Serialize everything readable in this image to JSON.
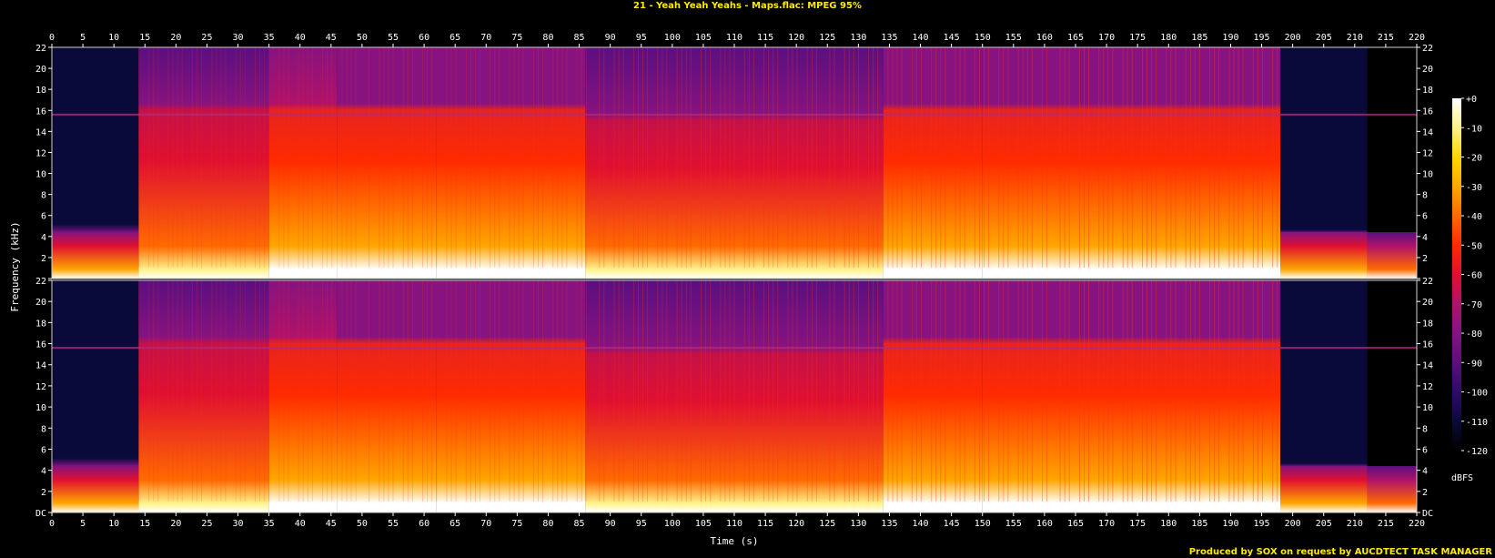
{
  "window": {
    "title": "21 - Yeah Yeah Yeahs - Maps.flac: MPEG 95%",
    "credit": "Produced by SOX on request by AUCDTECT TASK MANAGER"
  },
  "chart_data": {
    "type": "heatmap",
    "title": "21 - Yeah Yeah Yeahs - Maps.flac: MPEG 95%",
    "xlabel": "Time (s)",
    "ylabel": "Frequency (kHz)",
    "colorbar_label": "dBFS",
    "xlim": [
      0,
      220
    ],
    "ylim": [
      0,
      22
    ],
    "x_ticks": [
      0,
      5,
      10,
      15,
      20,
      25,
      30,
      35,
      40,
      45,
      50,
      55,
      60,
      65,
      70,
      75,
      80,
      85,
      90,
      95,
      100,
      105,
      110,
      115,
      120,
      125,
      130,
      135,
      140,
      145,
      150,
      155,
      160,
      165,
      170,
      175,
      180,
      185,
      190,
      195,
      200,
      205,
      210,
      215,
      220
    ],
    "y_ticks": [
      {
        "value": 0,
        "label": "DC"
      },
      {
        "value": 2,
        "label": "2"
      },
      {
        "value": 4,
        "label": "4"
      },
      {
        "value": 6,
        "label": "6"
      },
      {
        "value": 8,
        "label": "8"
      },
      {
        "value": 10,
        "label": "10"
      },
      {
        "value": 12,
        "label": "12"
      },
      {
        "value": 14,
        "label": "14"
      },
      {
        "value": 16,
        "label": "16"
      },
      {
        "value": 18,
        "label": "18"
      },
      {
        "value": 20,
        "label": "20"
      },
      {
        "value": 22,
        "label": "22"
      }
    ],
    "colorbar": {
      "range": [
        -120,
        0
      ],
      "ticks": [
        {
          "value": 0,
          "label": "+0"
        },
        {
          "value": -10,
          "label": "-10"
        },
        {
          "value": -20,
          "label": "-20"
        },
        {
          "value": -30,
          "label": "-30"
        },
        {
          "value": -40,
          "label": "-40"
        },
        {
          "value": -50,
          "label": "-50"
        },
        {
          "value": -60,
          "label": "-60"
        },
        {
          "value": -70,
          "label": "-70"
        },
        {
          "value": -80,
          "label": "-80"
        },
        {
          "value": -90,
          "label": "-90"
        },
        {
          "value": -100,
          "label": "-100"
        },
        {
          "value": -110,
          "label": "-110"
        },
        {
          "value": -120,
          "label": "-120"
        }
      ],
      "colors": [
        "#000000",
        "#0a0a3a",
        "#2e0a6a",
        "#5a0f80",
        "#86137f",
        "#b0126a",
        "#e01030",
        "#ff2a00",
        "#ff6a00",
        "#ffa600",
        "#ffd800",
        "#fff28a",
        "#ffffff"
      ]
    },
    "channels": [
      {
        "segments": [
          {
            "t0": 0,
            "t1": 14,
            "hf": 4.5,
            "level": -82
          },
          {
            "t0": 14,
            "t1": 35,
            "hf": 16,
            "level": -58
          },
          {
            "t0": 35,
            "t1": 46,
            "hf": 16,
            "level": -48
          },
          {
            "t0": 46,
            "t1": 62,
            "hf": 16,
            "level": -55
          },
          {
            "t0": 62,
            "t1": 86,
            "hf": 16,
            "level": -52
          },
          {
            "t0": 86,
            "t1": 134,
            "hf": 15,
            "level": -56
          },
          {
            "t0": 134,
            "t1": 150,
            "hf": 16,
            "level": -52
          },
          {
            "t0": 150,
            "t1": 198,
            "hf": 16,
            "level": -54
          },
          {
            "t0": 198,
            "t1": 212,
            "hf": 4,
            "level": -82
          },
          {
            "t0": 212,
            "t1": 220,
            "hf": 3,
            "level": -95
          }
        ]
      },
      {
        "segments": [
          {
            "t0": 0,
            "t1": 14,
            "hf": 4.5,
            "level": -82
          },
          {
            "t0": 14,
            "t1": 35,
            "hf": 16,
            "level": -58
          },
          {
            "t0": 35,
            "t1": 46,
            "hf": 16,
            "level": -48
          },
          {
            "t0": 46,
            "t1": 62,
            "hf": 16,
            "level": -55
          },
          {
            "t0": 62,
            "t1": 86,
            "hf": 16,
            "level": -52
          },
          {
            "t0": 86,
            "t1": 134,
            "hf": 15,
            "level": -56
          },
          {
            "t0": 134,
            "t1": 150,
            "hf": 16,
            "level": -52
          },
          {
            "t0": 150,
            "t1": 198,
            "hf": 16,
            "level": -54
          },
          {
            "t0": 198,
            "t1": 212,
            "hf": 4,
            "level": -82
          },
          {
            "t0": 212,
            "t1": 220,
            "hf": 3,
            "level": -95
          }
        ]
      }
    ],
    "grid": false,
    "legend": "right"
  }
}
